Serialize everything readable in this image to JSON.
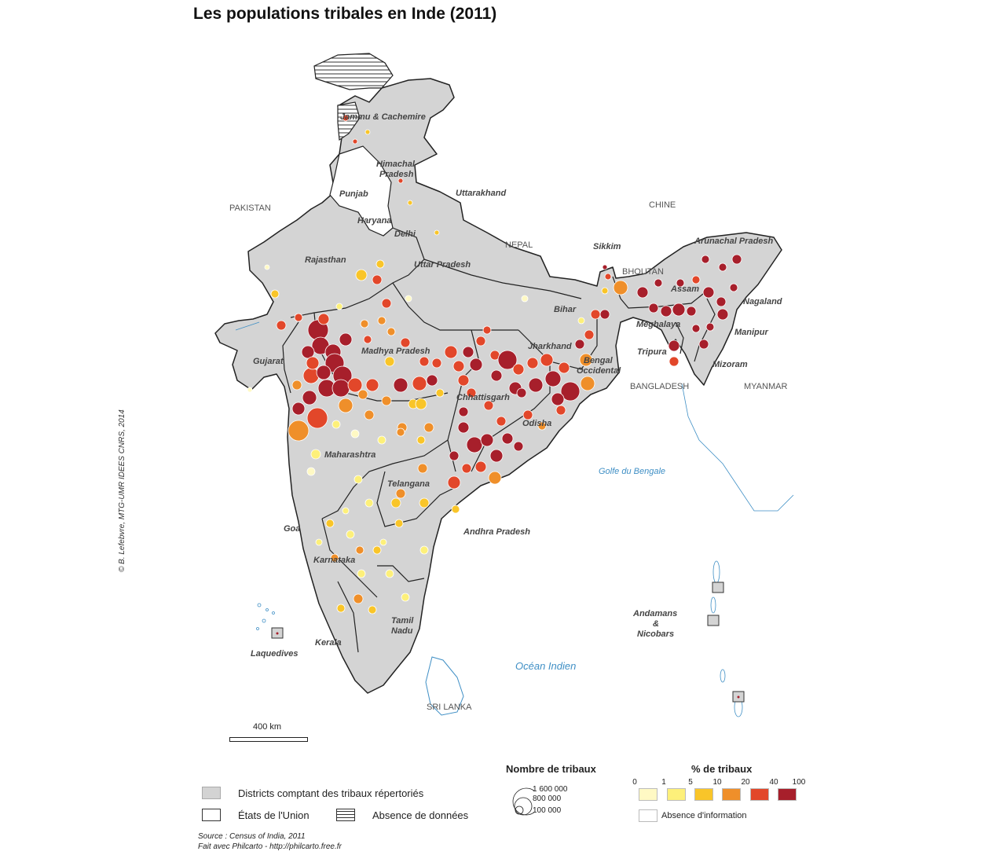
{
  "title": "Les populations tribales en Inde (2011)",
  "credit": "© B. Lefebvre, MTG-UMR IDEES CNRS, 2014",
  "states": {
    "jammu": "Jammu & Cachemire",
    "himachal_1": "Himachal",
    "himachal_2": "Pradesh",
    "punjab": "Punjab",
    "haryana": "Haryana",
    "delhi": "Delhi",
    "uttarakhand": "Uttarakhand",
    "rajasthan": "Rajasthan",
    "uttar_pradesh": "Uttar Pradesh",
    "gujarat": "Gujarat",
    "madhya_pradesh": "Madhya Pradesh",
    "bihar": "Bihar",
    "jharkhand": "Jharkhand",
    "bengal_1": "Bengal",
    "bengal_2": "Occidental",
    "chhattisgarh": "Chhattisgarh",
    "odisha": "Odisha",
    "maharashtra": "Maharashtra",
    "telangana": "Telangana",
    "andhra": "Andhra Pradesh",
    "goa": "Goa",
    "karnataka": "Karnataka",
    "tamil_1": "Tamil",
    "tamil_2": "Nadu",
    "kerala": "Kerala",
    "laquedives": "Laquedives",
    "sikkim": "Sikkim",
    "arunachal": "Arunachal Pradesh",
    "assam": "Assam",
    "nagaland": "Nagaland",
    "meghalaya": "Meghalaya",
    "manipur": "Manipur",
    "tripura": "Tripura",
    "mizoram": "Mizoram",
    "andamans_1": "Andamans",
    "andamans_2": "&",
    "andamans_3": "Nicobars"
  },
  "countries": {
    "pakistan": "PAKISTAN",
    "chine": "CHINE",
    "nepal": "NEPAL",
    "bhoutan": "BHOUTAN",
    "bangladesh": "BANGLADESH",
    "myanmar": "MYANMAR",
    "sri_lanka": "SRI LANKA"
  },
  "seas": {
    "golfe": "Golfe du Bengale",
    "ocean": "Océan Indien"
  },
  "scale_label": "400 km",
  "legend": {
    "districts": "Districts comptant des tribaux répertoriés",
    "etats": "États de l'Union",
    "absence": "Absence de données",
    "size_title": "Nombre de tribaux",
    "sizes": [
      "1 600 000",
      "800 000",
      "100 000"
    ],
    "color_title": "% de tribaux",
    "class_breaks": [
      "0",
      "1",
      "5",
      "10",
      "20",
      "40",
      "100"
    ],
    "class_colors": [
      "#fff9c4",
      "#fdf07a",
      "#f9c529",
      "#ef8f2a",
      "#e2472a",
      "#a71f2b"
    ],
    "no_info": "Absence d'information"
  },
  "source_1": "Source : Census of India, 2011",
  "source_2": "Fait avec Philcarto - http://philcarto.free.fr"
}
